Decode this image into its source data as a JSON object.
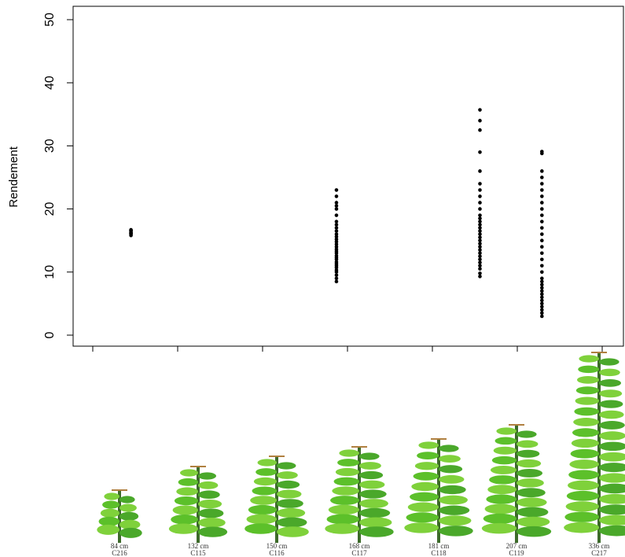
{
  "chart_data": {
    "type": "scatter",
    "y_label": "Rendement",
    "color": "#000000",
    "xlim": [
      1,
      7
    ],
    "xticks": [
      1,
      2,
      3,
      4,
      5,
      6,
      7
    ],
    "ylim": [
      0,
      50
    ],
    "yticks": [
      0,
      10,
      20,
      30,
      40,
      50
    ],
    "x": [
      1.45,
      1.45,
      1.45,
      1.45,
      1.45,
      1.45,
      1.45,
      1.45,
      3.87,
      3.87,
      3.87,
      3.87,
      3.87,
      3.87,
      3.87,
      3.87,
      3.87,
      3.87,
      3.87,
      3.87,
      3.87,
      3.87,
      3.87,
      3.87,
      3.87,
      3.87,
      3.87,
      3.87,
      3.87,
      3.87,
      3.87,
      3.87,
      3.87,
      3.87,
      3.87,
      3.87,
      3.87,
      3.87,
      3.87,
      5.56,
      5.56,
      5.56,
      5.56,
      5.56,
      5.56,
      5.56,
      5.56,
      5.56,
      5.56,
      5.56,
      5.56,
      5.56,
      5.56,
      5.56,
      5.56,
      5.56,
      5.56,
      5.56,
      5.56,
      5.56,
      5.56,
      5.56,
      5.56,
      5.56,
      5.56,
      5.56,
      5.56,
      5.56,
      5.56,
      6.29,
      6.29,
      6.29,
      6.29,
      6.29,
      6.29,
      6.29,
      6.29,
      6.29,
      6.29,
      6.29,
      6.29,
      6.29,
      6.29,
      6.29,
      6.29,
      6.29,
      6.29,
      6.29,
      6.29,
      6.29,
      6.29,
      6.29,
      6.29,
      6.29,
      6.29,
      6.29,
      6.29,
      6.29,
      6.29,
      6.29,
      6.29
    ],
    "values": [
      15.8,
      16.0,
      16.1,
      16.2,
      16.3,
      16.5,
      16.6,
      16.7,
      8.5,
      9,
      9.5,
      10,
      10.3,
      10.7,
      11,
      11.3,
      11.6,
      12,
      12.3,
      12.6,
      13,
      13.3,
      13.6,
      14,
      14.4,
      14.8,
      15.2,
      15.6,
      16,
      16.5,
      17,
      17.5,
      18,
      19,
      20,
      20.5,
      21,
      22,
      23,
      9.3,
      9.8,
      10.5,
      11,
      11.5,
      12,
      12.5,
      13,
      13.5,
      14,
      14.5,
      15,
      15.5,
      16,
      16.5,
      17,
      17.5,
      18,
      18.5,
      19,
      20,
      21,
      22,
      23,
      24,
      26,
      29,
      32.5,
      34,
      35.7,
      3,
      3.5,
      4,
      4.5,
      5,
      5.5,
      6,
      6.5,
      7,
      7.5,
      8,
      8.5,
      9,
      10,
      11,
      12,
      13,
      14,
      15,
      16,
      17,
      18,
      19,
      20,
      21,
      22,
      23,
      24,
      25,
      26,
      28.8,
      29.1
    ]
  },
  "plants": [
    {
      "height": "84 cm",
      "code": "C216"
    },
    {
      "height": "132 cm",
      "code": "C115"
    },
    {
      "height": "150 cm",
      "code": "C116"
    },
    {
      "height": "168 cm",
      "code": "C117"
    },
    {
      "height": "181 cm",
      "code": "C118"
    },
    {
      "height": "207 cm",
      "code": "C119"
    },
    {
      "height": "336 cm",
      "code": "C217"
    }
  ]
}
